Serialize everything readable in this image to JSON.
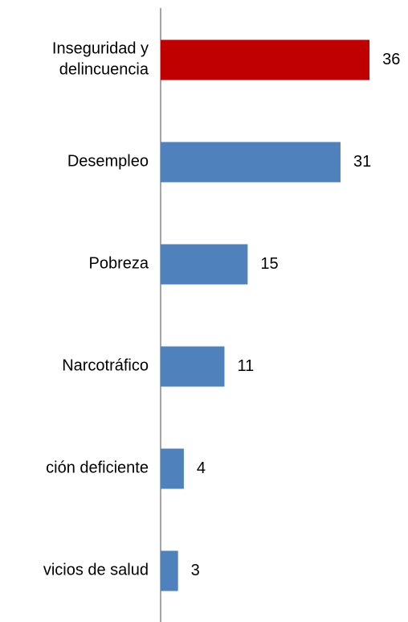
{
  "chart_data": {
    "type": "barh",
    "categories": [
      "Inseguridad y\ndelincuencia",
      "Desempleo",
      "Pobreza",
      "Narcotráfico",
      "ción deficiente",
      "vicios de salud"
    ],
    "values": [
      36,
      31,
      15,
      11,
      4,
      3
    ],
    "colors": [
      "#c00000",
      "#4f81bd",
      "#4f81bd",
      "#4f81bd",
      "#4f81bd",
      "#4f81bd"
    ],
    "xlim": [
      0,
      40
    ]
  }
}
